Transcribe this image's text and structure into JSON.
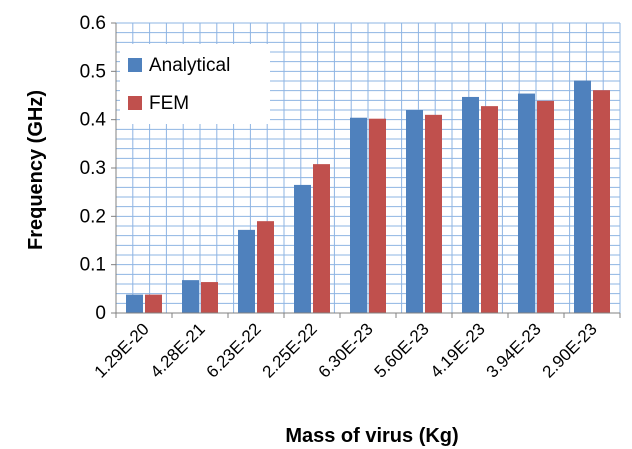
{
  "chart_data": {
    "type": "bar",
    "title": "",
    "xlabel": "Mass of virus (Kg)",
    "ylabel": "Frequency (GHz)",
    "ylim": [
      0,
      0.6
    ],
    "yticks": [
      "0",
      "0.1",
      "0.2",
      "0.3",
      "0.4",
      "0.5",
      "0.6"
    ],
    "grid": "on",
    "legend_position": "top-left",
    "categories": [
      "1.29E-20",
      "4.28E-21",
      "6.23E-22",
      "2.25E-22",
      "6.30E-23",
      "5.60E-23",
      "4.19E-23",
      "3.94E-23",
      "2.90E-23"
    ],
    "series": [
      {
        "name": "Analytical",
        "color": "#4F81BD",
        "values": [
          0.038,
          0.068,
          0.172,
          0.265,
          0.404,
          0.42,
          0.447,
          0.454,
          0.481
        ]
      },
      {
        "name": "FEM",
        "color": "#C0504D",
        "values": [
          0.038,
          0.064,
          0.19,
          0.308,
          0.402,
          0.41,
          0.428,
          0.439,
          0.461
        ]
      }
    ]
  }
}
